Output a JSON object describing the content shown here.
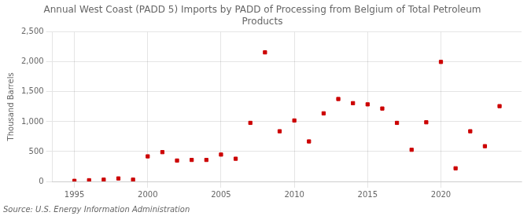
{
  "chart_data": {
    "type": "scatter",
    "title": "Annual West Coast (PADD 5) Imports by PADD of Processing from Belgium of Total Petroleum\nProducts",
    "ylabel": "Thousand Barrels",
    "source": "Source: U.S. Energy Information Administration",
    "x": [
      1995,
      1996,
      1997,
      1998,
      1999,
      2000,
      2001,
      2002,
      2003,
      2004,
      2005,
      2006,
      2007,
      2008,
      2009,
      2010,
      2011,
      2012,
      2013,
      2014,
      2015,
      2016,
      2017,
      2018,
      2019,
      2020,
      2021,
      2022,
      2023,
      2024
    ],
    "values": [
      10,
      20,
      30,
      50,
      30,
      420,
      490,
      350,
      360,
      360,
      450,
      380,
      980,
      2160,
      840,
      1020,
      670,
      1140,
      1380,
      1310,
      1290,
      1220,
      980,
      530,
      990,
      2000,
      220,
      840,
      590,
      1260
    ],
    "color": "#cc0000",
    "marker": "square",
    "xlim": [
      1993.5,
      2025.5
    ],
    "ylim": [
      0,
      2500
    ],
    "xticks": [
      1995,
      2000,
      2005,
      2010,
      2015,
      2020
    ],
    "yticks": [
      0,
      500,
      {
        "value": 1000,
        "label": "1,000"
      },
      {
        "value": 1500,
        "label": "1,500"
      },
      {
        "value": 2000,
        "label": "2,000"
      },
      {
        "value": 2500,
        "label": "2,500"
      }
    ],
    "grid": true
  }
}
